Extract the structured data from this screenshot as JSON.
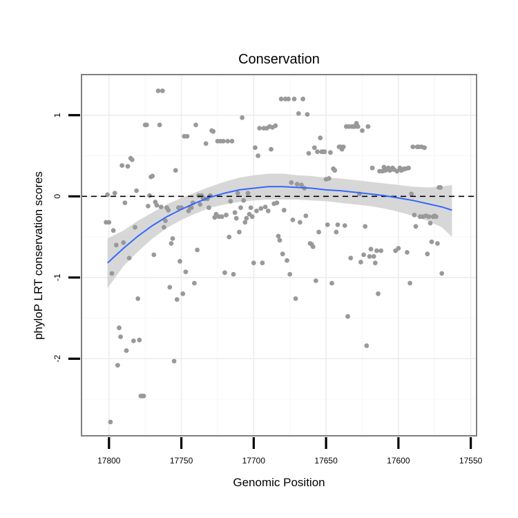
{
  "chart_data": {
    "type": "scatter",
    "title": "Conservation",
    "xlabel": "Genomic Position",
    "ylabel": "phyloP LRT conservation scores",
    "x_reversed": true,
    "xlim": [
      17819,
      17546
    ],
    "ylim": [
      -2.95,
      1.5
    ],
    "x_ticks": [
      17800,
      17750,
      17700,
      17650,
      17600,
      17550
    ],
    "x_tick_labels": [
      "17800",
      "17750",
      "17700",
      "17650",
      "17600",
      "17550"
    ],
    "y_ticks": [
      -2,
      -1,
      0,
      1
    ],
    "y_tick_labels": [
      "-2",
      "-1",
      "0",
      "1"
    ],
    "reference_line": {
      "y": 0,
      "style": "dashed",
      "color": "#000000"
    },
    "grid": true,
    "point_color": "#999999",
    "smooth_color": "#3366ff",
    "band_color": "#d3d3d3",
    "points": [
      [
        17802,
        -0.32
      ],
      [
        17801,
        0.02
      ],
      [
        17800,
        -0.32
      ],
      [
        17799,
        -2.78
      ],
      [
        17798,
        -0.95
      ],
      [
        17797,
        -0.42
      ],
      [
        17796,
        0.04
      ],
      [
        17795,
        -0.6
      ],
      [
        17794,
        -2.08
      ],
      [
        17793,
        -1.62
      ],
      [
        17792,
        -1.73
      ],
      [
        17791,
        0.38
      ],
      [
        17790,
        -0.57
      ],
      [
        17789,
        -0.08
      ],
      [
        17788,
        -1.9
      ],
      [
        17787,
        0.37
      ],
      [
        17786,
        -0.76
      ],
      [
        17785,
        0.47
      ],
      [
        17784,
        0.45
      ],
      [
        17783,
        -1.78
      ],
      [
        17782,
        -0.38
      ],
      [
        17781,
        0.07
      ],
      [
        17780,
        -1.26
      ],
      [
        17779,
        -1.77
      ],
      [
        17778,
        -2.46
      ],
      [
        17777,
        -2.46
      ],
      [
        17776,
        -2.46
      ],
      [
        17775,
        0.88
      ],
      [
        17774,
        0.88
      ],
      [
        17773,
        -0.12
      ],
      [
        17772,
        0.01
      ],
      [
        17771,
        0.24
      ],
      [
        17770,
        0.25
      ],
      [
        17769,
        -0.72
      ],
      [
        17768,
        -0.07
      ],
      [
        17767,
        -0.11
      ],
      [
        17766,
        1.3
      ],
      [
        17765,
        0.88
      ],
      [
        17764,
        -0.13
      ],
      [
        17763,
        1.3
      ],
      [
        17762,
        -0.38
      ],
      [
        17761,
        -0.3
      ],
      [
        17760,
        -0.14
      ],
      [
        17759,
        -0.17
      ],
      [
        17758,
        -1.12
      ],
      [
        17757,
        -0.58
      ],
      [
        17756,
        -0.52
      ],
      [
        17755,
        -2.03
      ],
      [
        17754,
        0.32
      ],
      [
        17753,
        -1.27
      ],
      [
        17752,
        -0.14
      ],
      [
        17751,
        -0.8
      ],
      [
        17750,
        -0.14
      ],
      [
        17749,
        -1.2
      ],
      [
        17748,
        0.74
      ],
      [
        17747,
        -0.93
      ],
      [
        17746,
        0.74
      ],
      [
        17745,
        -0.18
      ],
      [
        17744,
        -0.13
      ],
      [
        17743,
        -0.14
      ],
      [
        17742,
        -0.08
      ],
      [
        17741,
        -1.07
      ],
      [
        17740,
        0.88
      ],
      [
        17739,
        -0.66
      ],
      [
        17738,
        0.01
      ],
      [
        17737,
        -0.1
      ],
      [
        17736,
        0.01
      ],
      [
        17735,
        -0.02
      ],
      [
        17734,
        -0.03
      ],
      [
        17733,
        0.65
      ],
      [
        17732,
        -0.03
      ],
      [
        17731,
        -0.14
      ],
      [
        17730,
        0.01
      ],
      [
        17729,
        0.81
      ],
      [
        17728,
        0.8
      ],
      [
        17727,
        -0.26
      ],
      [
        17726,
        -0.22
      ],
      [
        17725,
        0.68
      ],
      [
        17724,
        -0.25
      ],
      [
        17723,
        0.68
      ],
      [
        17722,
        -0.25
      ],
      [
        17721,
        0.68
      ],
      [
        17720,
        -0.94
      ],
      [
        17719,
        -0.23
      ],
      [
        17718,
        0.68
      ],
      [
        17717,
        -0.5
      ],
      [
        17716,
        -0.06
      ],
      [
        17715,
        0.68
      ],
      [
        17714,
        -0.96
      ],
      [
        17713,
        -0.2
      ],
      [
        17712,
        -0.27
      ],
      [
        17711,
        0.04
      ],
      [
        17710,
        -0.44
      ],
      [
        17709,
        -0.14
      ],
      [
        17708,
        0.97
      ],
      [
        17707,
        -0.05
      ],
      [
        17706,
        -0.32
      ],
      [
        17705,
        -0.27
      ],
      [
        17704,
        0.04
      ],
      [
        17703,
        -0.22
      ],
      [
        17702,
        -0.14
      ],
      [
        17701,
        -0.25
      ],
      [
        17700,
        -0.82
      ],
      [
        17699,
        0.6
      ],
      [
        17698,
        -0.18
      ],
      [
        17697,
        0.5
      ],
      [
        17696,
        0.84
      ],
      [
        17695,
        -0.15
      ],
      [
        17694,
        -0.82
      ],
      [
        17693,
        0.84
      ],
      [
        17692,
        -0.13
      ],
      [
        17691,
        0.84
      ],
      [
        17690,
        -0.18
      ],
      [
        17689,
        0.86
      ],
      [
        17688,
        0.58
      ],
      [
        17687,
        0.85
      ],
      [
        17686,
        -0.09
      ],
      [
        17685,
        0.87
      ],
      [
        17684,
        -0.08
      ],
      [
        17683,
        -0.49
      ],
      [
        17682,
        -0.54
      ],
      [
        17681,
        1.2
      ],
      [
        17680,
        -0.71
      ],
      [
        17679,
        -0.17
      ],
      [
        17678,
        1.2
      ],
      [
        17677,
        -0.79
      ],
      [
        17676,
        1.2
      ],
      [
        17675,
        -0.96
      ],
      [
        17674,
        0.17
      ],
      [
        17673,
        -0.29
      ],
      [
        17672,
        1.2
      ],
      [
        17671,
        -1.26
      ],
      [
        17670,
        0.15
      ],
      [
        17669,
        1.02
      ],
      [
        17668,
        -0.32
      ],
      [
        17667,
        0.14
      ],
      [
        17666,
        1.2
      ],
      [
        17665,
        0.1
      ],
      [
        17664,
        -0.24
      ],
      [
        17663,
        1.01
      ],
      [
        17662,
        0.53
      ],
      [
        17661,
        -0.58
      ],
      [
        17660,
        -0.59
      ],
      [
        17659,
        -0.62
      ],
      [
        17658,
        0.6
      ],
      [
        17657,
        -1.04
      ],
      [
        17656,
        0.55
      ],
      [
        17655,
        -0.44
      ],
      [
        17654,
        0.72
      ],
      [
        17653,
        0.55
      ],
      [
        17652,
        0.55
      ],
      [
        17651,
        0.55
      ],
      [
        17650,
        0.21
      ],
      [
        17649,
        -0.35
      ],
      [
        17648,
        0.22
      ],
      [
        17647,
        0.54
      ],
      [
        17646,
        -1.07
      ],
      [
        17645,
        0.34
      ],
      [
        17644,
        0.32
      ],
      [
        17643,
        -0.44
      ],
      [
        17642,
        -0.35
      ],
      [
        17641,
        0.61
      ],
      [
        17640,
        0.61
      ],
      [
        17639,
        0.58
      ],
      [
        17638,
        0.61
      ],
      [
        17637,
        -0.36
      ],
      [
        17636,
        0.86
      ],
      [
        17635,
        -1.48
      ],
      [
        17634,
        0.86
      ],
      [
        17633,
        -0.76
      ],
      [
        17632,
        0.86
      ],
      [
        17631,
        0.86
      ],
      [
        17630,
        0.86
      ],
      [
        17629,
        0.9
      ],
      [
        17628,
        0.86
      ],
      [
        17627,
        0.03
      ],
      [
        17626,
        -0.81
      ],
      [
        17625,
        0.81
      ],
      [
        17624,
        -0.72
      ],
      [
        17623,
        -0.37
      ],
      [
        17622,
        -1.84
      ],
      [
        17621,
        0.86
      ],
      [
        17620,
        -0.74
      ],
      [
        17619,
        -0.65
      ],
      [
        17618,
        0.35
      ],
      [
        17617,
        -0.74
      ],
      [
        17616,
        -0.82
      ],
      [
        17615,
        -0.67
      ],
      [
        17614,
        -1.2
      ],
      [
        17613,
        0.31
      ],
      [
        17612,
        -0.67
      ],
      [
        17611,
        0.31
      ],
      [
        17610,
        0.36
      ],
      [
        17609,
        0.32
      ],
      [
        17608,
        0.33
      ],
      [
        17607,
        0.35
      ],
      [
        17606,
        0.32
      ],
      [
        17605,
        0.33
      ],
      [
        17604,
        0.35
      ],
      [
        17603,
        0.33
      ],
      [
        17602,
        -0.67
      ],
      [
        17601,
        0.31
      ],
      [
        17600,
        -0.64
      ],
      [
        17599,
        0.35
      ],
      [
        17598,
        0.32
      ],
      [
        17597,
        0.33
      ],
      [
        17596,
        0.34
      ],
      [
        17595,
        0.34
      ],
      [
        17594,
        -0.69
      ],
      [
        17593,
        0.35
      ],
      [
        17592,
        -1.07
      ],
      [
        17591,
        0.03
      ],
      [
        17590,
        0.61
      ],
      [
        17589,
        -0.23
      ],
      [
        17588,
        -0.37
      ],
      [
        17587,
        0.61
      ],
      [
        17586,
        0.61
      ],
      [
        17585,
        -0.25
      ],
      [
        17584,
        0.61
      ],
      [
        17583,
        -0.25
      ],
      [
        17582,
        0.6
      ],
      [
        17581,
        -0.24
      ],
      [
        17580,
        -0.71
      ],
      [
        17579,
        -0.25
      ],
      [
        17578,
        -0.33
      ],
      [
        17577,
        -0.56
      ],
      [
        17576,
        -0.25
      ],
      [
        17575,
        -0.24
      ],
      [
        17574,
        -0.25
      ],
      [
        17573,
        -0.58
      ],
      [
        17572,
        0.11
      ],
      [
        17571,
        0.11
      ],
      [
        17570,
        -0.95
      ]
    ],
    "smooth": [
      [
        17801,
        -0.82
      ],
      [
        17790,
        -0.64
      ],
      [
        17780,
        -0.49
      ],
      [
        17770,
        -0.36
      ],
      [
        17760,
        -0.25
      ],
      [
        17750,
        -0.16
      ],
      [
        17740,
        -0.08
      ],
      [
        17730,
        -0.01
      ],
      [
        17720,
        0.04
      ],
      [
        17710,
        0.08
      ],
      [
        17700,
        0.1
      ],
      [
        17690,
        0.12
      ],
      [
        17680,
        0.12
      ],
      [
        17670,
        0.11
      ],
      [
        17660,
        0.1
      ],
      [
        17650,
        0.08
      ],
      [
        17640,
        0.07
      ],
      [
        17630,
        0.05
      ],
      [
        17620,
        0.03
      ],
      [
        17610,
        0.01
      ],
      [
        17600,
        -0.02
      ],
      [
        17590,
        -0.05
      ],
      [
        17580,
        -0.09
      ],
      [
        17570,
        -0.13
      ],
      [
        17563,
        -0.17
      ]
    ],
    "band_upper": [
      [
        17801,
        -0.52
      ],
      [
        17790,
        -0.42
      ],
      [
        17780,
        -0.3
      ],
      [
        17770,
        -0.2
      ],
      [
        17760,
        -0.1
      ],
      [
        17750,
        -0.02
      ],
      [
        17740,
        0.05
      ],
      [
        17730,
        0.12
      ],
      [
        17720,
        0.18
      ],
      [
        17710,
        0.23
      ],
      [
        17700,
        0.26
      ],
      [
        17690,
        0.28
      ],
      [
        17680,
        0.28
      ],
      [
        17670,
        0.26
      ],
      [
        17660,
        0.25
      ],
      [
        17650,
        0.23
      ],
      [
        17640,
        0.22
      ],
      [
        17630,
        0.2
      ],
      [
        17620,
        0.18
      ],
      [
        17610,
        0.16
      ],
      [
        17600,
        0.14
      ],
      [
        17590,
        0.12
      ],
      [
        17580,
        0.11
      ],
      [
        17570,
        0.12
      ],
      [
        17563,
        0.14
      ]
    ],
    "band_lower": [
      [
        17801,
        -1.13
      ],
      [
        17790,
        -0.86
      ],
      [
        17780,
        -0.68
      ],
      [
        17770,
        -0.52
      ],
      [
        17760,
        -0.39
      ],
      [
        17750,
        -0.29
      ],
      [
        17740,
        -0.21
      ],
      [
        17730,
        -0.14
      ],
      [
        17720,
        -0.1
      ],
      [
        17710,
        -0.07
      ],
      [
        17700,
        -0.05
      ],
      [
        17690,
        -0.04
      ],
      [
        17680,
        -0.04
      ],
      [
        17670,
        -0.04
      ],
      [
        17660,
        -0.05
      ],
      [
        17650,
        -0.06
      ],
      [
        17640,
        -0.08
      ],
      [
        17630,
        -0.1
      ],
      [
        17620,
        -0.12
      ],
      [
        17610,
        -0.15
      ],
      [
        17600,
        -0.19
      ],
      [
        17590,
        -0.24
      ],
      [
        17580,
        -0.3
      ],
      [
        17570,
        -0.38
      ],
      [
        17563,
        -0.5
      ]
    ]
  }
}
